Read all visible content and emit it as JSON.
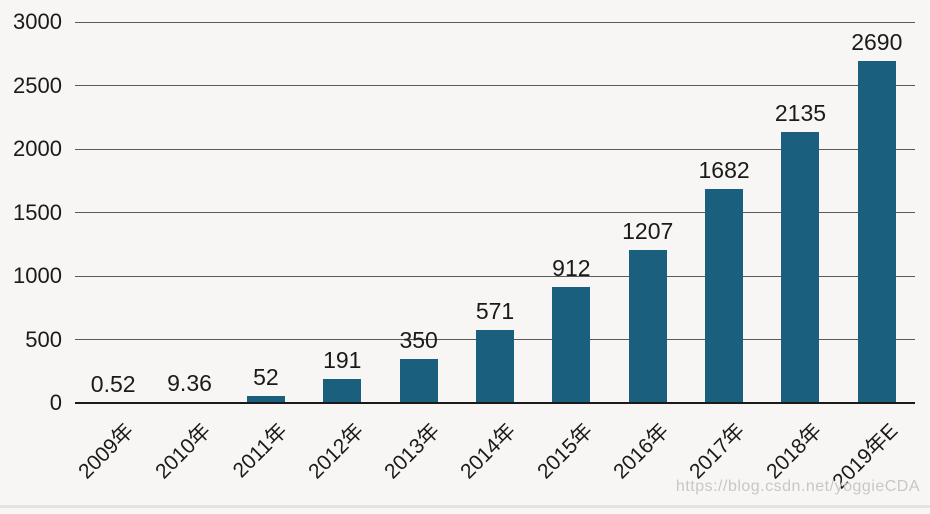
{
  "chart_data": {
    "type": "bar",
    "categories": [
      "2009年",
      "2010年",
      "2011年",
      "2012年",
      "2013年",
      "2014年",
      "2015年",
      "2016年",
      "2017年",
      "2018年",
      "2019年E"
    ],
    "values": [
      0.52,
      9.36,
      52,
      191,
      350,
      571,
      912,
      1207,
      1682,
      2135,
      2690
    ],
    "value_labels": [
      "0.52",
      "9.36",
      "52",
      "191",
      "350",
      "571",
      "912",
      "1207",
      "1682",
      "2135",
      "2690"
    ],
    "title": "",
    "xlabel": "",
    "ylabel": "",
    "ylim": [
      0,
      3000
    ],
    "yticks": [
      0,
      500,
      1000,
      1500,
      2000,
      2500,
      3000
    ],
    "grid": true,
    "legend": "none",
    "bar_color": "#1b5f7e",
    "background": "#f8f6f5",
    "gridline_color": "#5a5a5a",
    "axis_line_color": "#1a1a1a",
    "text_color": "#1a1a1a"
  },
  "watermark": "https://blog.csdn.net/yoggieCDA"
}
